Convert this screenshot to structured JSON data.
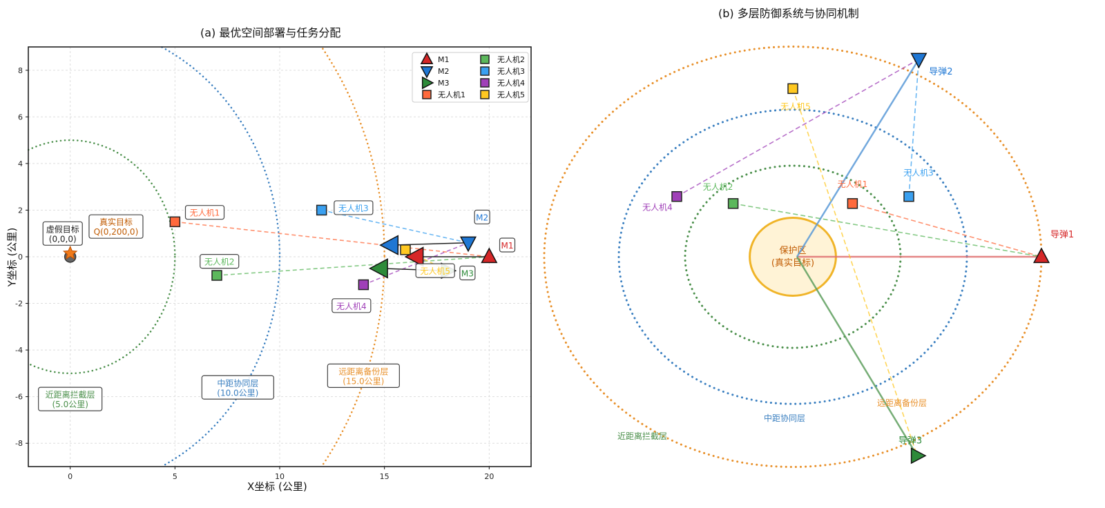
{
  "chart_data": [
    {
      "type": "scatter",
      "title": "(a) 最优空间部署与任务分配",
      "xlabel": "X坐标 (公里)",
      "ylabel": "Y坐标 (公里)",
      "xlim": [
        -2,
        22
      ],
      "ylim": [
        -9,
        9
      ],
      "xticks": [
        0,
        5,
        10,
        15,
        20
      ],
      "yticks": [
        -8,
        -6,
        -4,
        -2,
        0,
        2,
        4,
        6,
        8
      ],
      "grid": true,
      "legend_position": "top-right",
      "colors": {
        "m1": "#d62728",
        "m2": "#1f77d4",
        "m3": "#2e8b3a",
        "uav1": "#ff6a3d",
        "uav2": "#5cb85c",
        "uav3": "#3aa0f0",
        "uav4": "#a040b8",
        "uav5": "#ffc820",
        "green_ring": "#4a8f4a",
        "blue_ring": "#3a7fc0",
        "orange_ring": "#e8902a"
      },
      "rings": [
        {
          "radius": 5,
          "label": "近距离拦截层",
          "sub": "(5.0公里)",
          "color": "#4a8f4a",
          "label_at": [
            0,
            -5.6
          ]
        },
        {
          "radius": 10,
          "label": "中距协同层",
          "sub": "(10.0公里)",
          "color": "#3a7fc0",
          "label_at": [
            8,
            -5.1
          ]
        },
        {
          "radius": 15,
          "label": "远距离备份层",
          "sub": "(15.0公里)",
          "color": "#e8902a",
          "label_at": [
            14,
            -4.6
          ]
        }
      ],
      "decoy": {
        "x": 0,
        "y": 0,
        "label": "虚假目标",
        "sub": "(0,0,0)"
      },
      "real_target": {
        "label": "真实目标",
        "sub": "Q(0,200,0)"
      },
      "missiles": [
        {
          "name": "M1",
          "x": 20,
          "y": 0,
          "shape": "up",
          "color": "#d62728",
          "vx_to": 16.5,
          "vy_to": 0
        },
        {
          "name": "M2",
          "x": 19,
          "y": 0.6,
          "shape": "down",
          "color": "#1f77d4",
          "vx_to": 15.3,
          "vy_to": 0.5
        },
        {
          "name": "M3",
          "x": 18,
          "y": -0.6,
          "shape": "right",
          "color": "#2e8b3a",
          "vx_to": 14.8,
          "vy_to": -0.5
        }
      ],
      "uavs": [
        {
          "name": "无人机1",
          "x": 5,
          "y": 1.5,
          "color": "#ff6a3d",
          "target": 0
        },
        {
          "name": "无人机2",
          "x": 7,
          "y": -0.8,
          "color": "#5cb85c",
          "target": 0
        },
        {
          "name": "无人机3",
          "x": 12,
          "y": 2,
          "color": "#3aa0f0",
          "target": 1
        },
        {
          "name": "无人机4",
          "x": 14,
          "y": -1.2,
          "color": "#a040b8",
          "target": 1
        },
        {
          "name": "无人机5",
          "x": 16,
          "y": 0.3,
          "color": "#ffc820",
          "target": 2
        }
      ]
    },
    {
      "type": "diagram",
      "title": "(b) 多层防御系统与协同机制",
      "protected_zone": {
        "label": "保护区",
        "sub": "(真实目标)",
        "radius": 2.6
      },
      "rings": [
        {
          "radius": 6.5,
          "label": "近距离拦截层",
          "color": "#4a8f4a"
        },
        {
          "radius": 10.5,
          "label": "中距协同层",
          "color": "#3a7fc0"
        },
        {
          "radius": 15,
          "label": "远距离备份层",
          "color": "#e8902a"
        }
      ],
      "missiles": [
        {
          "name": "导弹1",
          "x": 15,
          "y": 0,
          "shape": "up",
          "color": "#d62728"
        },
        {
          "name": "导弹2",
          "x": 7.6,
          "y": 14.1,
          "shape": "down",
          "color": "#1f77d4"
        },
        {
          "name": "导弹3",
          "x": 7.5,
          "y": -14.2,
          "shape": "right",
          "color": "#2e8b3a"
        }
      ],
      "uavs": [
        {
          "name": "无人机1",
          "x": 3.6,
          "y": 3.8,
          "color": "#ff6a3d",
          "target": 0
        },
        {
          "name": "无人机2",
          "x": -3.6,
          "y": 3.8,
          "color": "#5cb85c",
          "target": 0
        },
        {
          "name": "无人机3",
          "x": 7,
          "y": 4.3,
          "color": "#3aa0f0",
          "target": 1
        },
        {
          "name": "无人机4",
          "x": -7,
          "y": 4.3,
          "color": "#a040b8",
          "target": 1
        },
        {
          "name": "无人机5",
          "x": 0,
          "y": 12,
          "color": "#ffc820",
          "target": 2
        }
      ]
    }
  ]
}
